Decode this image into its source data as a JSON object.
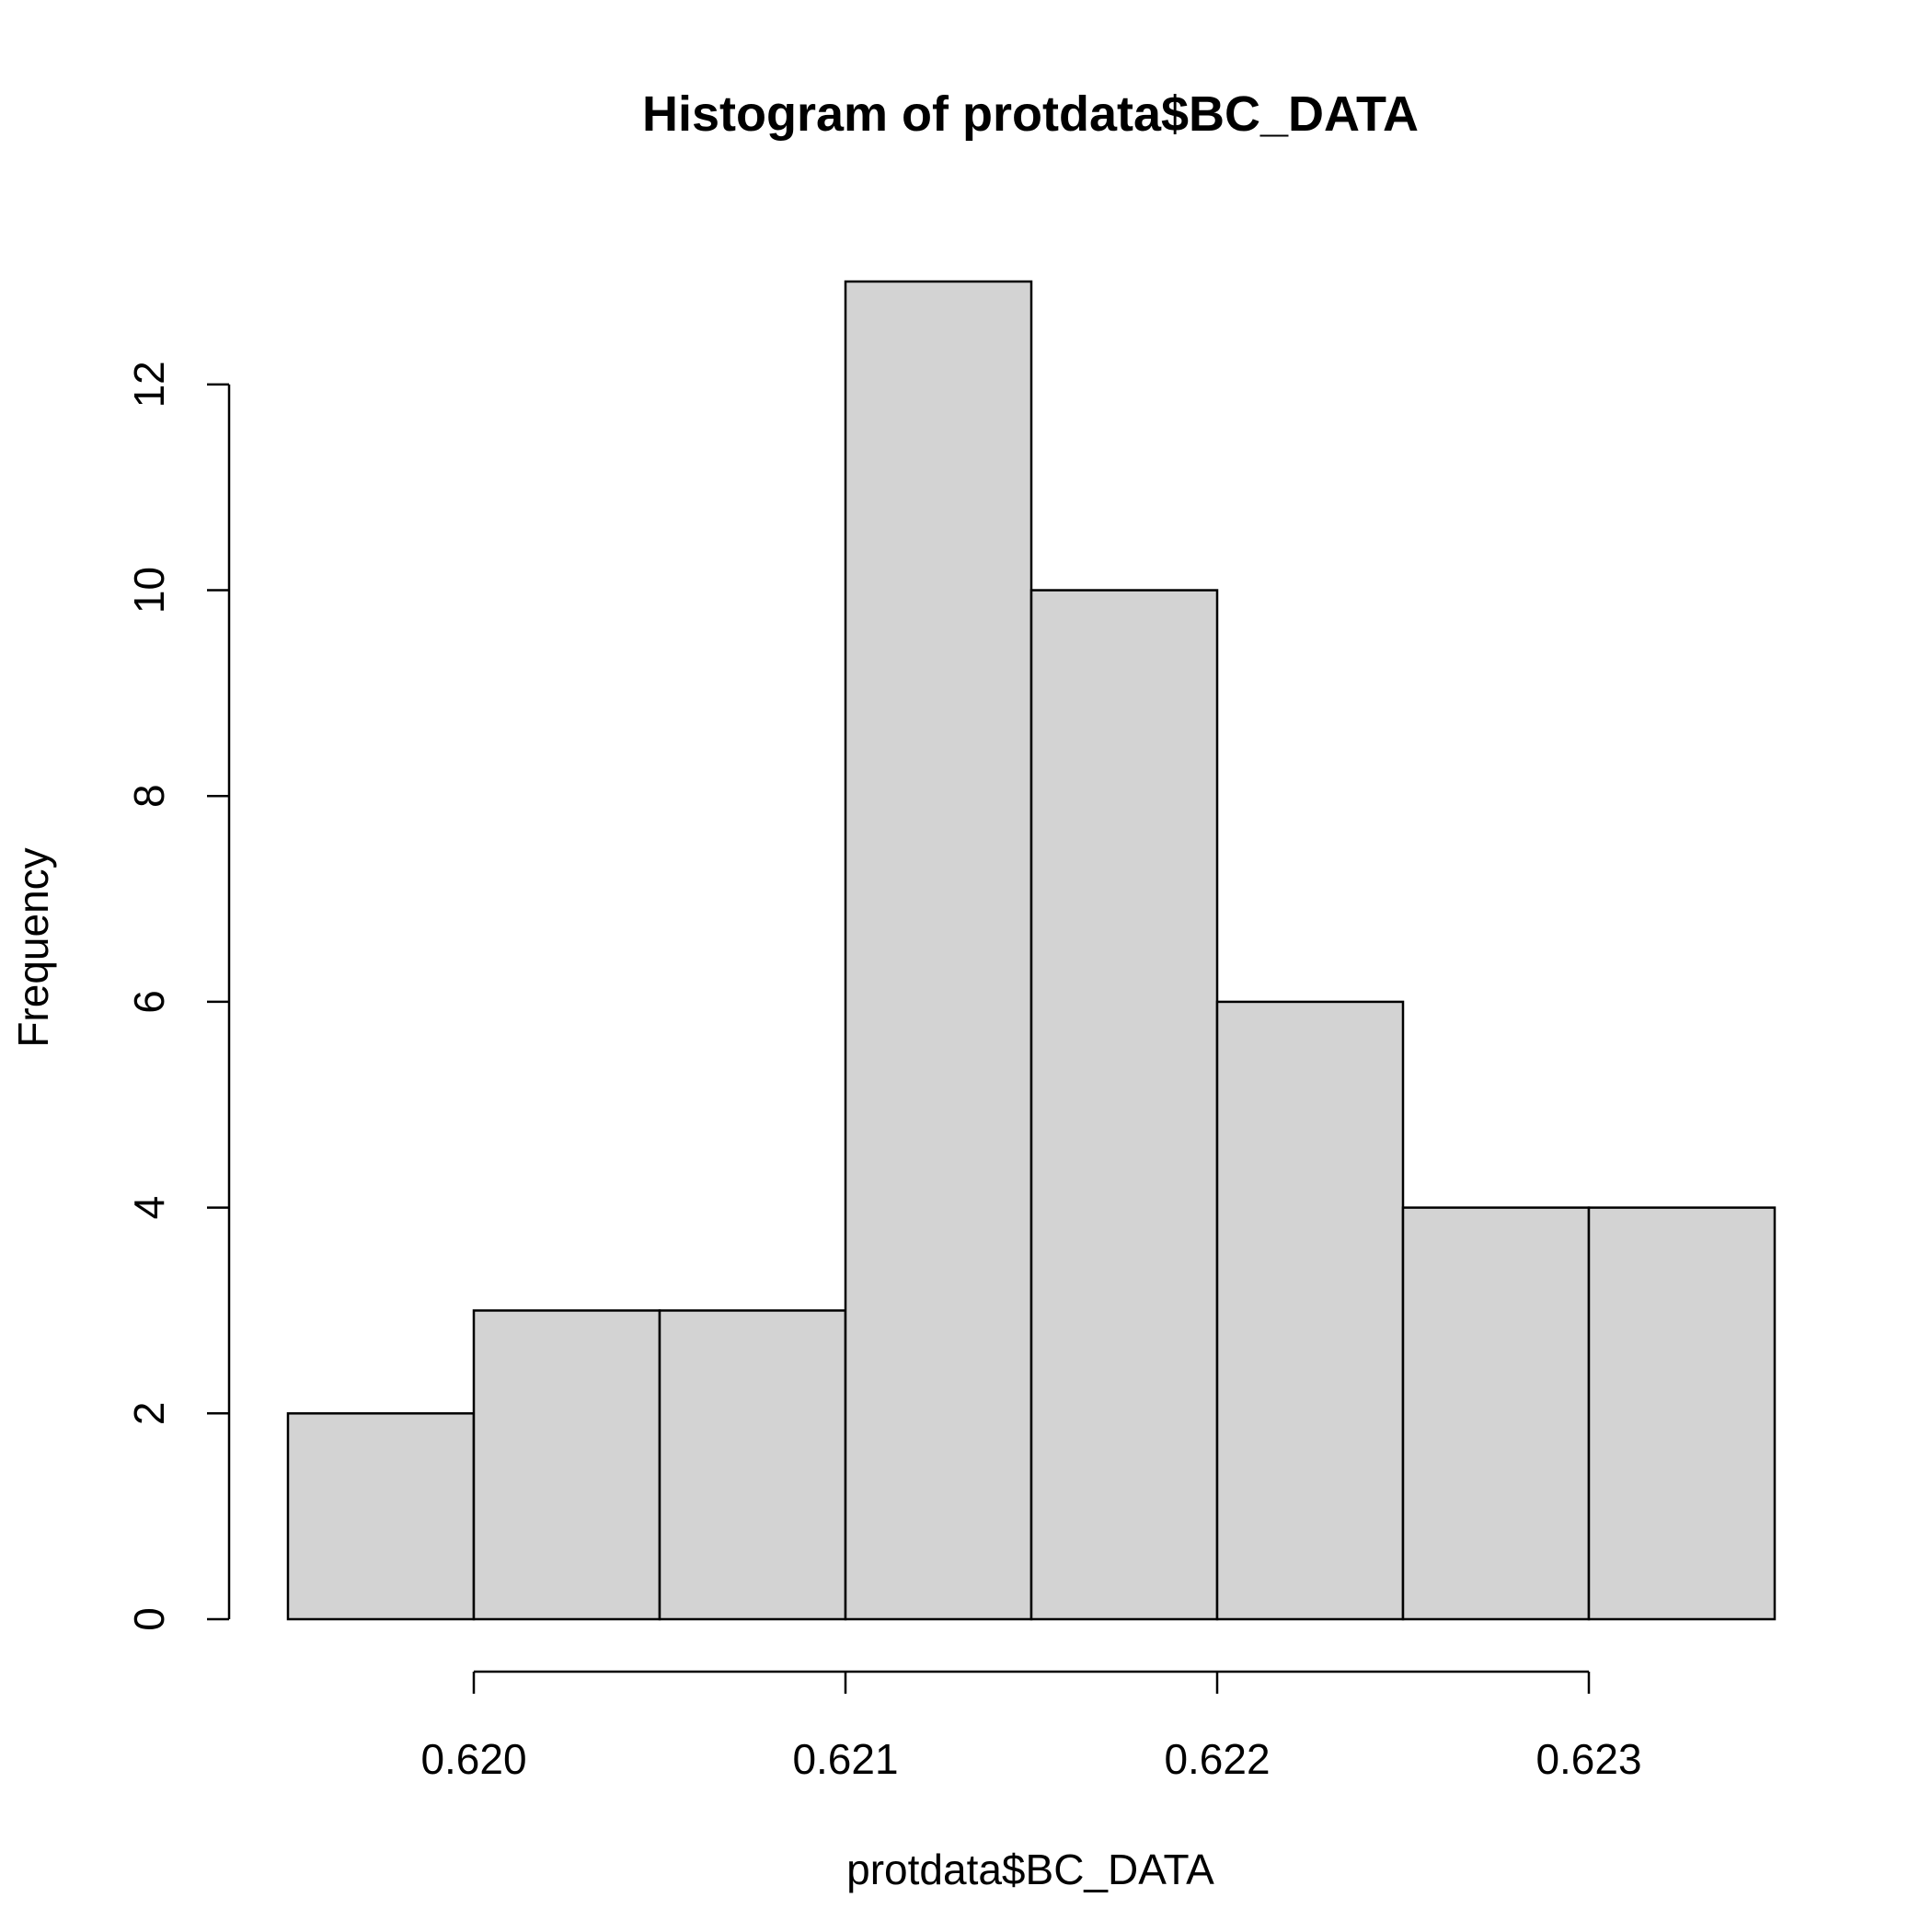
{
  "chart_data": {
    "type": "bar",
    "subtype": "histogram",
    "title": "Histogram of protdata$BC_DATA",
    "xlabel": "protdata$BC_DATA",
    "ylabel": "Frequency",
    "bins": [
      {
        "start": 0.6195,
        "end": 0.62,
        "count": 2
      },
      {
        "start": 0.62,
        "end": 0.6205,
        "count": 3
      },
      {
        "start": 0.6205,
        "end": 0.621,
        "count": 3
      },
      {
        "start": 0.621,
        "end": 0.6215,
        "count": 13
      },
      {
        "start": 0.6215,
        "end": 0.622,
        "count": 10
      },
      {
        "start": 0.622,
        "end": 0.6225,
        "count": 6
      },
      {
        "start": 0.6225,
        "end": 0.623,
        "count": 4
      },
      {
        "start": 0.623,
        "end": 0.6235,
        "count": 4
      }
    ],
    "xlim": [
      0.6195,
      0.6235
    ],
    "ylim": [
      0,
      13
    ],
    "x_ticks": [
      {
        "value": 0.62,
        "label": "0.620"
      },
      {
        "value": 0.621,
        "label": "0.621"
      },
      {
        "value": 0.622,
        "label": "0.622"
      },
      {
        "value": 0.623,
        "label": "0.623"
      }
    ],
    "y_ticks": [
      {
        "value": 0,
        "label": "0"
      },
      {
        "value": 2,
        "label": "2"
      },
      {
        "value": 4,
        "label": "4"
      },
      {
        "value": 6,
        "label": "6"
      },
      {
        "value": 8,
        "label": "8"
      },
      {
        "value": 10,
        "label": "10"
      },
      {
        "value": 12,
        "label": "12"
      }
    ],
    "grid": false,
    "legend": "none",
    "colors": {
      "bar_fill": "#d3d3d3",
      "bar_stroke": "#000000",
      "axis": "#000000"
    }
  }
}
